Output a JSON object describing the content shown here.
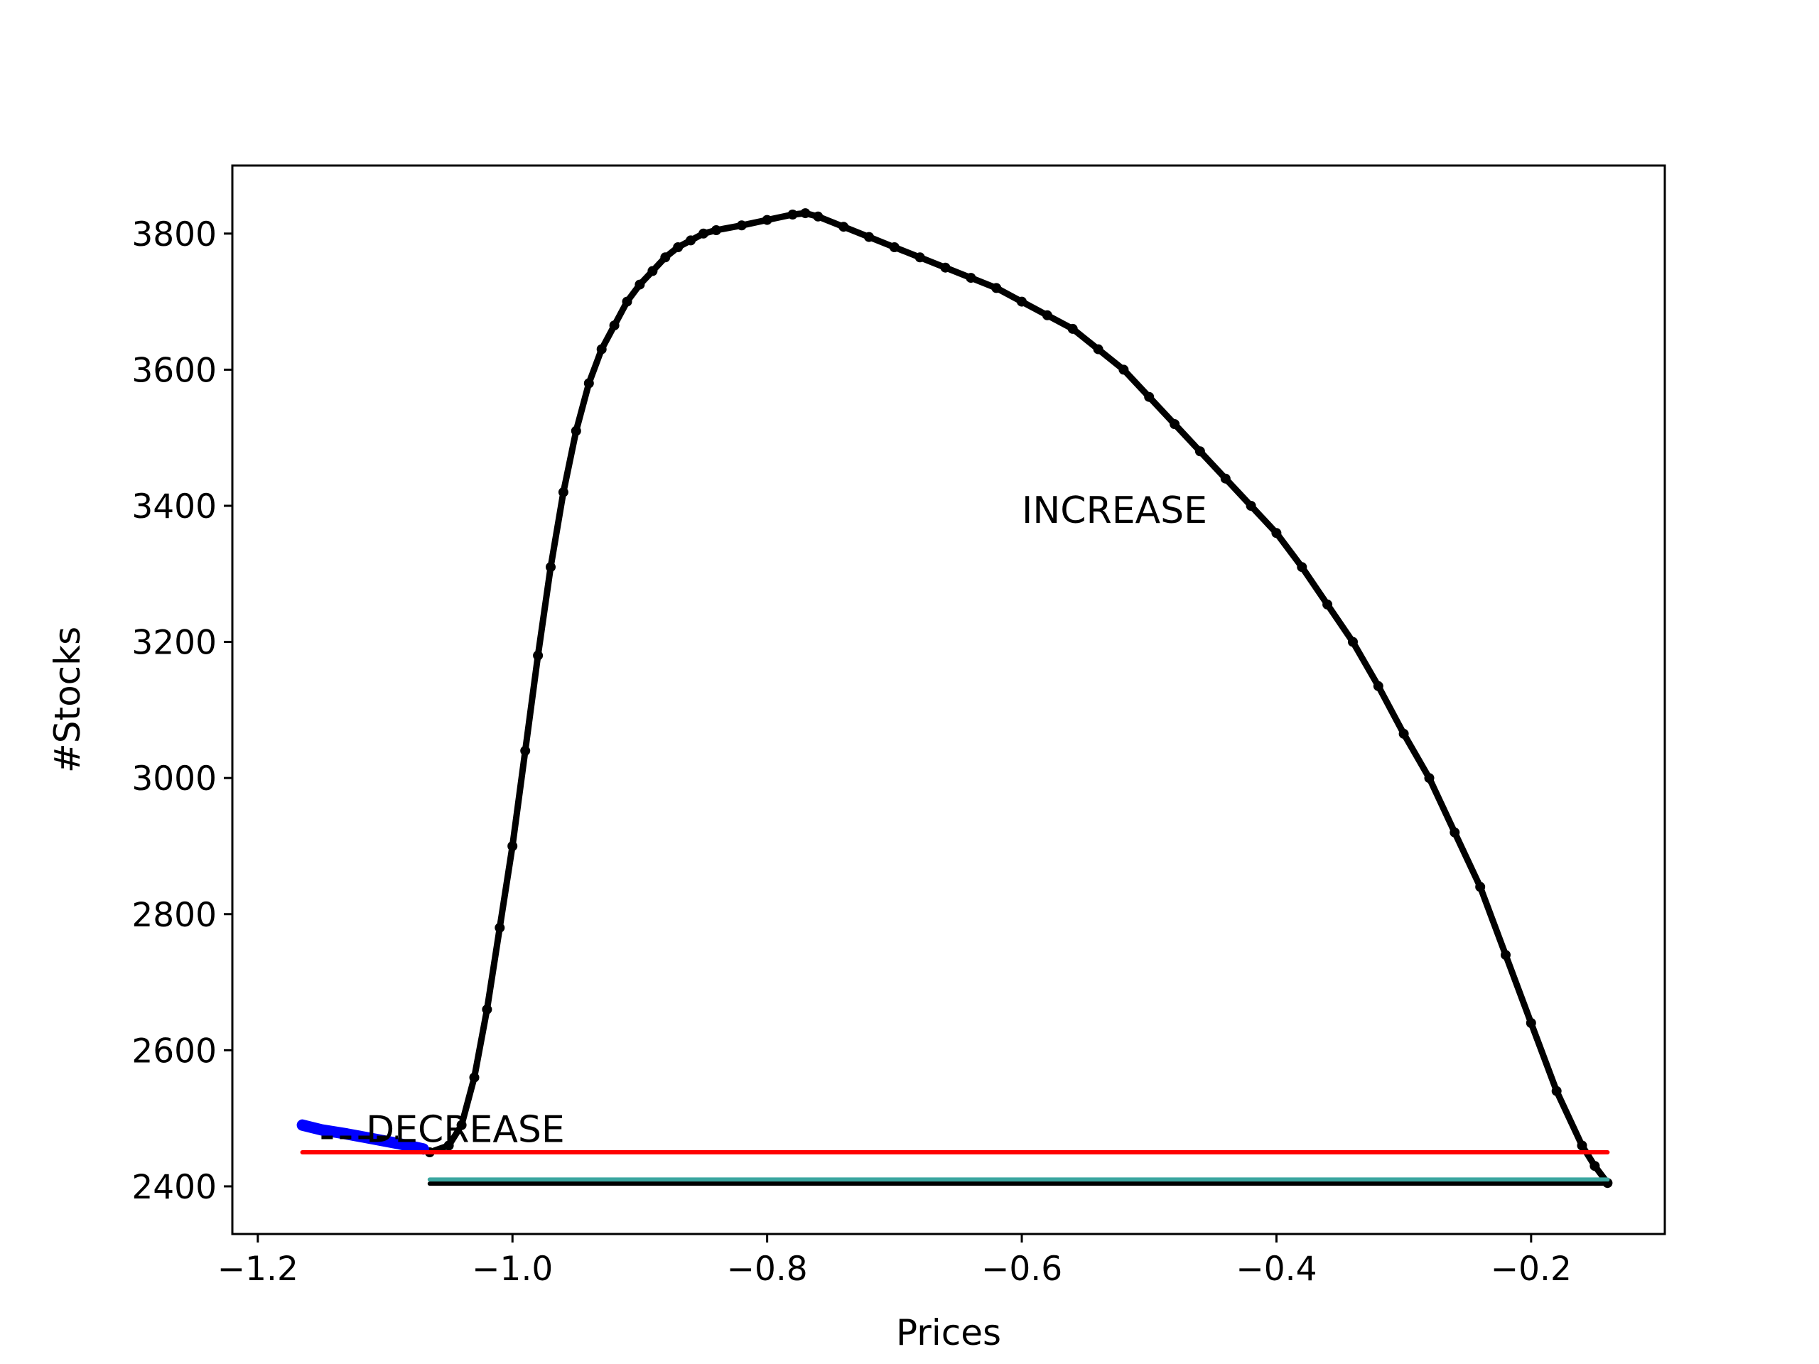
{
  "chart_data": {
    "type": "line",
    "title": "",
    "xlabel": "Prices",
    "ylabel": "#Stocks",
    "xlim": [
      -1.22,
      -0.095
    ],
    "ylim": [
      2330,
      3900
    ],
    "x_ticks": [
      -1.2,
      -1.0,
      -0.8,
      -0.6,
      -0.4,
      -0.2
    ],
    "x_tick_labels": [
      "−1.2",
      "−1.0",
      "−0.8",
      "−0.6",
      "−0.4",
      "−0.2"
    ],
    "y_ticks": [
      2400,
      2600,
      2800,
      3000,
      3200,
      3400,
      3600,
      3800
    ],
    "y_tick_labels": [
      "2400",
      "2600",
      "2800",
      "3000",
      "3200",
      "3400",
      "3600",
      "3800"
    ],
    "grid": false,
    "legend": "none",
    "annotations": [
      {
        "text": "INCREASE",
        "x": -0.6,
        "y": 3375
      },
      {
        "text": "DECREASE",
        "x": -1.115,
        "y": 2465
      }
    ],
    "series": [
      {
        "style": "black line with dot markers",
        "color": "#000000",
        "x": [
          -1.065,
          -1.05,
          -1.04,
          -1.03,
          -1.02,
          -1.01,
          -1.0,
          -0.99,
          -0.98,
          -0.97,
          -0.96,
          -0.95,
          -0.94,
          -0.93,
          -0.92,
          -0.91,
          -0.9,
          -0.89,
          -0.88,
          -0.87,
          -0.86,
          -0.85,
          -0.84,
          -0.82,
          -0.8,
          -0.78,
          -0.77,
          -0.76,
          -0.74,
          -0.72,
          -0.7,
          -0.68,
          -0.66,
          -0.64,
          -0.62,
          -0.6,
          -0.58,
          -0.56,
          -0.54,
          -0.52,
          -0.5,
          -0.48,
          -0.46,
          -0.44,
          -0.42,
          -0.4,
          -0.38,
          -0.36,
          -0.34,
          -0.32,
          -0.3,
          -0.28,
          -0.26,
          -0.24,
          -0.22,
          -0.2,
          -0.18,
          -0.16,
          -0.15,
          -0.14
        ],
        "values": [
          2450,
          2460,
          2490,
          2560,
          2660,
          2780,
          2900,
          3040,
          3180,
          3310,
          3420,
          3510,
          3580,
          3630,
          3665,
          3700,
          3725,
          3745,
          3765,
          3780,
          3790,
          3800,
          3805,
          3812,
          3820,
          3828,
          3830,
          3825,
          3810,
          3795,
          3780,
          3765,
          3750,
          3735,
          3720,
          3700,
          3680,
          3660,
          3630,
          3600,
          3560,
          3520,
          3480,
          3440,
          3400,
          3360,
          3310,
          3255,
          3200,
          3135,
          3065,
          3000,
          2920,
          2840,
          2740,
          2640,
          2540,
          2460,
          2430,
          2405
        ]
      },
      {
        "style": "thick blue line",
        "color": "#0000ff",
        "x": [
          -1.165,
          -1.15,
          -1.13,
          -1.11,
          -1.09,
          -1.07
        ],
        "values": [
          2490,
          2483,
          2477,
          2470,
          2463,
          2455
        ]
      },
      {
        "style": "red horizontal line",
        "color": "#ff0000",
        "x": [
          -1.165,
          -0.14
        ],
        "values": [
          2450,
          2450
        ]
      },
      {
        "style": "teal horizontal line",
        "color": "#3aa6a0",
        "x": [
          -1.065,
          -0.14
        ],
        "values": [
          2410,
          2410
        ]
      },
      {
        "style": "black horizontal line",
        "color": "#000000",
        "x": [
          -1.065,
          -0.14
        ],
        "values": [
          2404,
          2404
        ]
      },
      {
        "style": "black dashed line",
        "color": "#000000",
        "x": [
          -1.15,
          -1.09
        ],
        "values": [
          2472,
          2472
        ]
      }
    ]
  }
}
